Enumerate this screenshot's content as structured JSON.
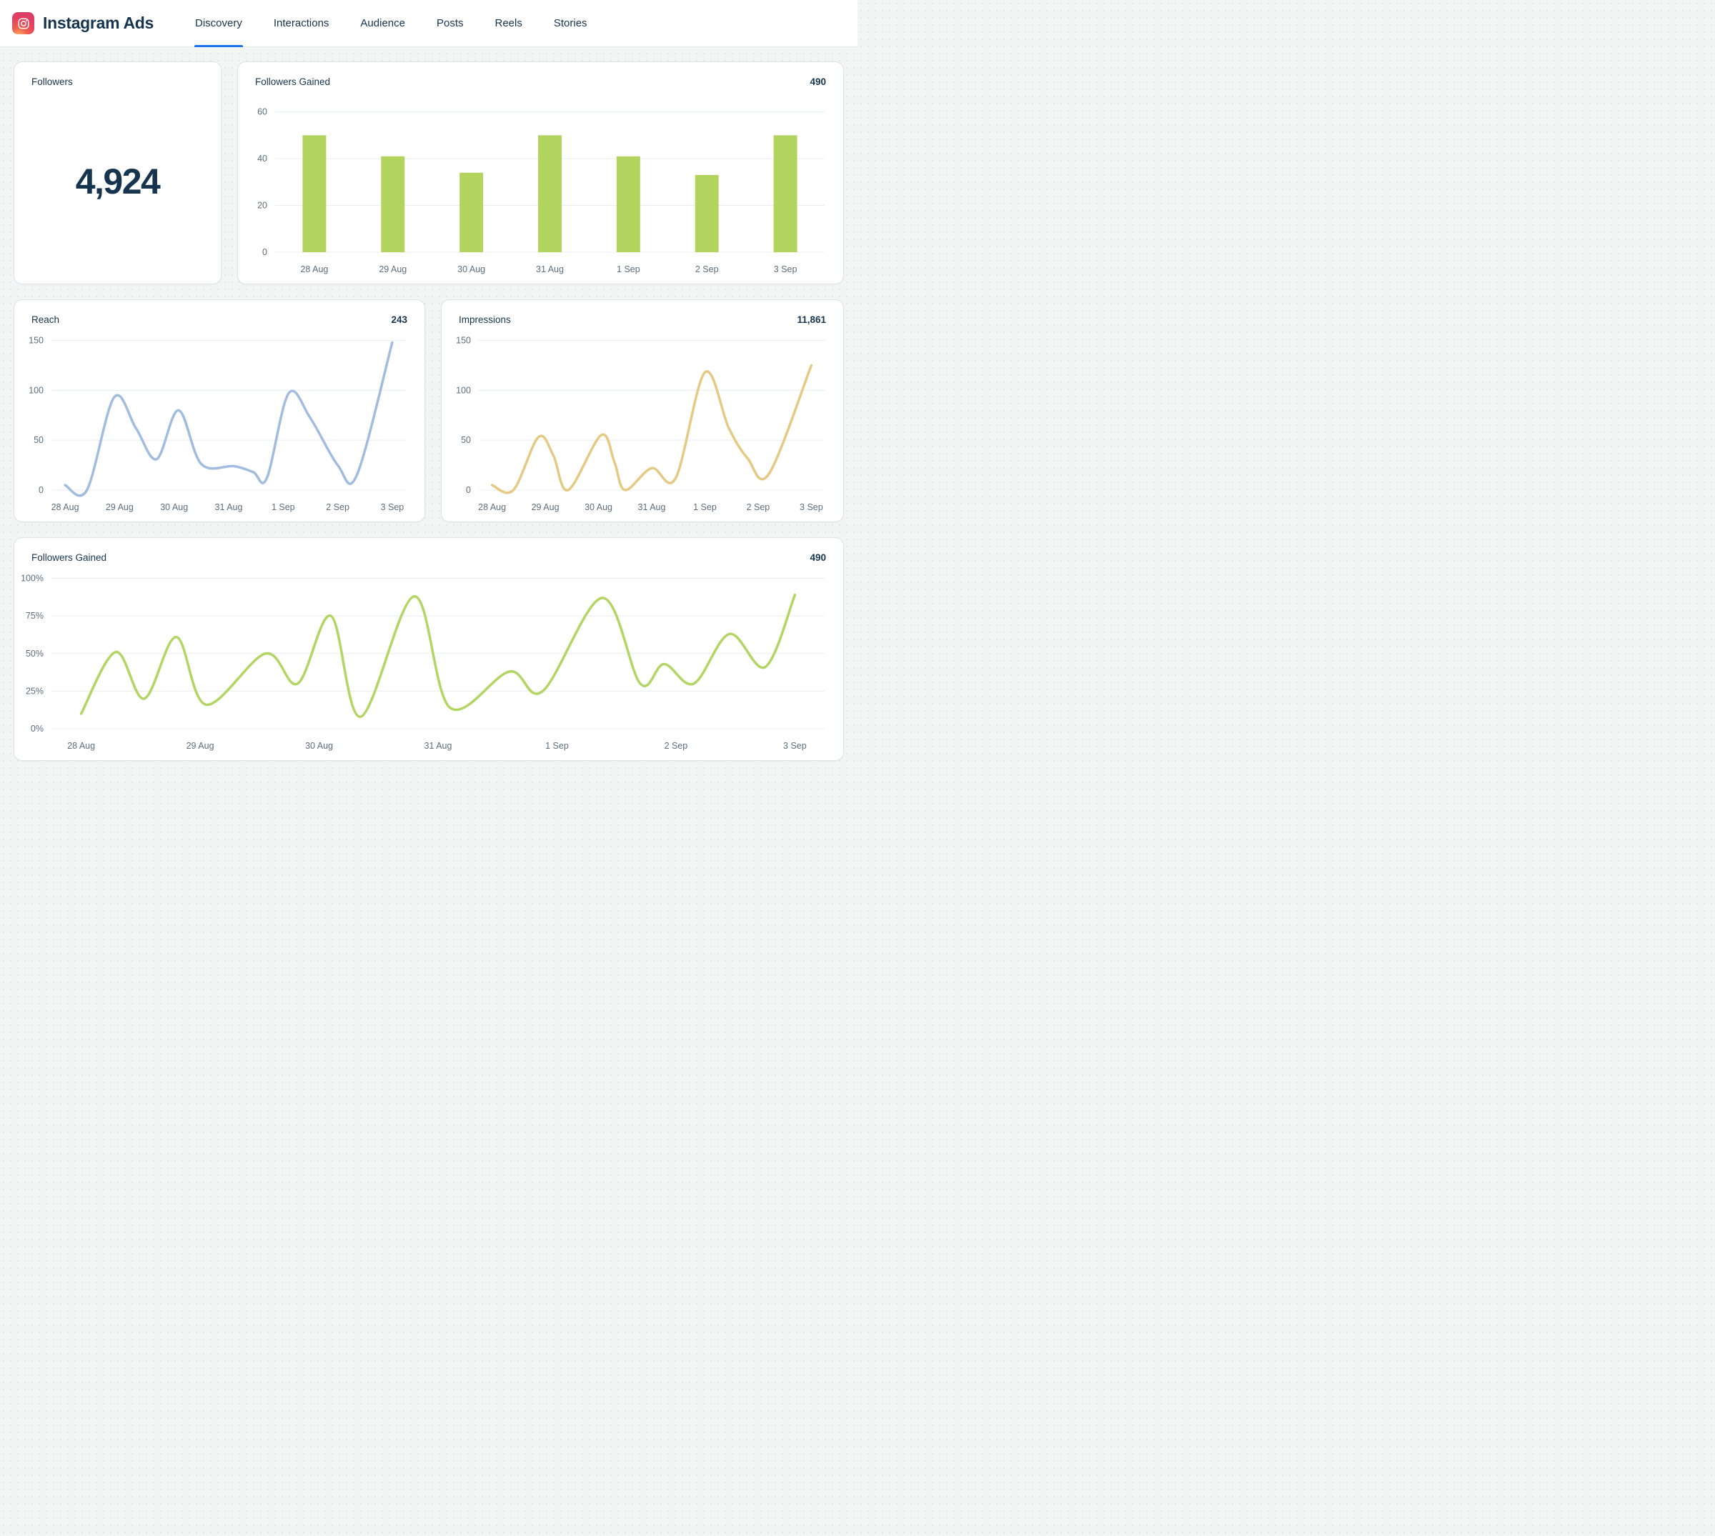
{
  "header": {
    "title": "Instagram Ads",
    "tabs": [
      {
        "label": "Discovery",
        "active": true
      },
      {
        "label": "Interactions",
        "active": false
      },
      {
        "label": "Audience",
        "active": false
      },
      {
        "label": "Posts",
        "active": false
      },
      {
        "label": "Reels",
        "active": false
      },
      {
        "label": "Stories",
        "active": false
      }
    ]
  },
  "followers_card": {
    "title": "Followers",
    "value": "4,924"
  },
  "colors": {
    "navy": "#17344f",
    "accent_blue": "#1a73e8",
    "bar_green": "#b2d45f",
    "line_green": "#b3d564",
    "line_blue": "#a2bce0",
    "line_tan": "#e5ca86",
    "grid": "#e9edf0",
    "tick": "#5c6e7e",
    "logo_red": "#e4405f"
  },
  "chart_data": [
    {
      "id": "followers-gained-bar",
      "card_title": "Followers Gained",
      "total": "490",
      "type": "bar",
      "categories": [
        "28 Aug",
        "29 Aug",
        "30 Aug",
        "31 Aug",
        "1 Sep",
        "2 Sep",
        "3 Sep"
      ],
      "values": [
        50,
        41,
        34,
        50,
        41,
        33,
        50
      ],
      "ylim": [
        0,
        60
      ],
      "yticks": [
        {
          "v": 0,
          "label": "0"
        },
        {
          "v": 20,
          "label": "20"
        },
        {
          "v": 40,
          "label": "40"
        },
        {
          "v": 60,
          "label": "60"
        }
      ],
      "color": "#b2d45f",
      "grid": true,
      "legend": "none"
    },
    {
      "id": "reach",
      "card_title": "Reach",
      "total": "243",
      "type": "line",
      "categories": [
        "28 Aug",
        "29 Aug",
        "30 Aug",
        "31 Aug",
        "1 Sep",
        "2 Sep",
        "3 Sep"
      ],
      "x_range_days": [
        0,
        6
      ],
      "points": [
        [
          0,
          5
        ],
        [
          0.4,
          0
        ],
        [
          0.9,
          93
        ],
        [
          1.3,
          62
        ],
        [
          1.68,
          31
        ],
        [
          2.08,
          80
        ],
        [
          2.5,
          26
        ],
        [
          3.1,
          24
        ],
        [
          3.45,
          18
        ],
        [
          3.7,
          12
        ],
        [
          4.1,
          97
        ],
        [
          4.5,
          72
        ],
        [
          5.0,
          25
        ],
        [
          5.35,
          15
        ],
        [
          6,
          148
        ]
      ],
      "ylim": [
        0,
        150
      ],
      "yticks": [
        {
          "v": 0,
          "label": "0"
        },
        {
          "v": 50,
          "label": "50"
        },
        {
          "v": 100,
          "label": "100"
        },
        {
          "v": 150,
          "label": "150"
        }
      ],
      "color": "#a2bce0",
      "grid": true,
      "legend": "none"
    },
    {
      "id": "impressions",
      "card_title": "Impressions",
      "total": "11,861",
      "type": "line",
      "categories": [
        "28 Aug",
        "29 Aug",
        "30 Aug",
        "31 Aug",
        "1 Sep",
        "2 Sep",
        "3 Sep"
      ],
      "x_range_days": [
        0,
        6
      ],
      "points": [
        [
          0,
          5
        ],
        [
          0.4,
          0
        ],
        [
          0.87,
          53
        ],
        [
          1.15,
          35
        ],
        [
          1.43,
          0
        ],
        [
          2.05,
          55
        ],
        [
          2.3,
          28
        ],
        [
          2.5,
          0
        ],
        [
          3.0,
          22
        ],
        [
          3.45,
          12
        ],
        [
          4.0,
          118
        ],
        [
          4.45,
          62
        ],
        [
          4.8,
          32
        ],
        [
          5.2,
          16
        ],
        [
          6,
          125
        ]
      ],
      "ylim": [
        0,
        150
      ],
      "yticks": [
        {
          "v": 0,
          "label": "0"
        },
        {
          "v": 50,
          "label": "50"
        },
        {
          "v": 100,
          "label": "100"
        },
        {
          "v": 150,
          "label": "150"
        }
      ],
      "color": "#e5ca86",
      "grid": true,
      "legend": "none"
    },
    {
      "id": "followers-gained-pct",
      "card_title": "Followers Gained",
      "total": "490",
      "type": "line",
      "categories": [
        "28 Aug",
        "29 Aug",
        "30 Aug",
        "31 Aug",
        "1 Sep",
        "2 Sep",
        "3 Sep"
      ],
      "x_range_days": [
        0,
        6
      ],
      "points": [
        [
          0,
          10
        ],
        [
          0.29,
          51
        ],
        [
          0.53,
          20
        ],
        [
          0.8,
          61
        ],
        [
          1.05,
          16
        ],
        [
          1.55,
          50
        ],
        [
          1.82,
          30
        ],
        [
          2.1,
          75
        ],
        [
          2.35,
          8
        ],
        [
          2.8,
          88
        ],
        [
          3.1,
          14
        ],
        [
          3.6,
          38
        ],
        [
          3.88,
          25
        ],
        [
          4.38,
          87
        ],
        [
          4.7,
          30
        ],
        [
          4.9,
          43
        ],
        [
          5.15,
          30
        ],
        [
          5.45,
          63
        ],
        [
          5.75,
          41
        ],
        [
          6,
          89
        ]
      ],
      "ylim": [
        0,
        100
      ],
      "yticks": [
        {
          "v": 0,
          "label": "0%"
        },
        {
          "v": 25,
          "label": "25%"
        },
        {
          "v": 50,
          "label": "50%"
        },
        {
          "v": 75,
          "label": "75%"
        },
        {
          "v": 100,
          "label": "100%"
        }
      ],
      "color": "#b3d564",
      "grid": true,
      "legend": "none"
    }
  ]
}
